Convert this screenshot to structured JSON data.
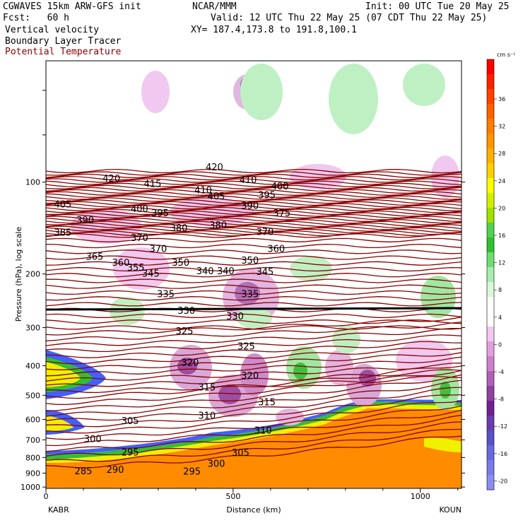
{
  "header": {
    "model": "CGWAVES 15km ARW-GFS init",
    "org": "NCAR/MMM",
    "init": "Init: 00 UTC Tue 20 May 25",
    "fcst": "Fcst:   60 h",
    "valid": "Valid: 12 UTC Thu 22 May 25 (07 CDT Thu 22 May 25)",
    "field1": "Vertical velocity",
    "field2": "Boundary Layer Tracer",
    "field3": "Potential Temperature",
    "xy": "XY= 187.4,173.8 to 191.8,100.1"
  },
  "colors": {
    "theta": "#8b0000",
    "field3_text": "#8b0000"
  },
  "chart_data": {
    "type": "heatmap",
    "xlabel": "Distance (km)",
    "ylabel": "Pressure (hPa), log scale",
    "x_ticks": [
      0,
      500,
      1000
    ],
    "xlim": [
      0,
      1110
    ],
    "y_ticks": [
      100,
      200,
      300,
      400,
      500,
      600,
      700,
      800,
      900,
      1000
    ],
    "ylim_hpa": [
      1010,
      40
    ],
    "y_scale": "log",
    "left_station": "KABR",
    "right_station": "KOUN",
    "colorbar": {
      "unit": "cm s⁻¹",
      "labels": [
        36,
        32,
        28,
        24,
        20,
        16,
        12,
        8,
        4,
        0,
        -4,
        -8,
        -12,
        -16,
        -20
      ],
      "colors": [
        "#ff0000",
        "#ff2000",
        "#ff4000",
        "#ff6000",
        "#ff7d00",
        "#ff9400",
        "#ffb000",
        "#ffd000",
        "#ffff00",
        "#d0f000",
        "#a0e000",
        "#50d050",
        "#30c030",
        "#70dd70",
        "#a8ecb0",
        "#d8f8d8",
        "#ffffff",
        "#ffffff",
        "#f0c8f0",
        "#e0a0e0",
        "#cc80cc",
        "#b060b8",
        "#9040a0",
        "#702090",
        "#6a3cb0",
        "#5a50c8",
        "#6868e0",
        "#7a7ae8",
        "#8c8cf0"
      ]
    },
    "theta_labels": [
      {
        "v": "420",
        "x": 175,
        "p": 97
      },
      {
        "v": "415",
        "x": 285,
        "p": 101
      },
      {
        "v": "410",
        "x": 420,
        "p": 106
      },
      {
        "v": "410",
        "x": 540,
        "p": 98
      },
      {
        "v": "400",
        "x": 625,
        "p": 103
      },
      {
        "v": "420",
        "x": 450,
        "p": 89
      },
      {
        "v": "405",
        "x": 45,
        "p": 118
      },
      {
        "v": "400",
        "x": 250,
        "p": 122
      },
      {
        "v": "395",
        "x": 305,
        "p": 126
      },
      {
        "v": "405",
        "x": 455,
        "p": 111
      },
      {
        "v": "390",
        "x": 545,
        "p": 119
      },
      {
        "v": "395",
        "x": 590,
        "p": 110
      },
      {
        "v": "375",
        "x": 630,
        "p": 126
      },
      {
        "v": "390",
        "x": 105,
        "p": 133
      },
      {
        "v": "380",
        "x": 355,
        "p": 141
      },
      {
        "v": "380",
        "x": 460,
        "p": 138
      },
      {
        "v": "370",
        "x": 585,
        "p": 145
      },
      {
        "v": "385",
        "x": 45,
        "p": 146
      },
      {
        "v": "360",
        "x": 615,
        "p": 165
      },
      {
        "v": "370",
        "x": 250,
        "p": 152
      },
      {
        "v": "370",
        "x": 300,
        "p": 165
      },
      {
        "v": "365",
        "x": 130,
        "p": 175
      },
      {
        "v": "360",
        "x": 200,
        "p": 183
      },
      {
        "v": "355",
        "x": 240,
        "p": 190
      },
      {
        "v": "350",
        "x": 360,
        "p": 183
      },
      {
        "v": "350",
        "x": 545,
        "p": 180
      },
      {
        "v": "345",
        "x": 585,
        "p": 196
      },
      {
        "v": "345",
        "x": 280,
        "p": 199
      },
      {
        "v": "340",
        "x": 425,
        "p": 195
      },
      {
        "v": "340",
        "x": 480,
        "p": 195
      },
      {
        "v": "335",
        "x": 320,
        "p": 232
      },
      {
        "v": "335",
        "x": 545,
        "p": 232
      },
      {
        "v": "330",
        "x": 375,
        "p": 263
      },
      {
        "v": "330",
        "x": 505,
        "p": 275
      },
      {
        "v": "325",
        "x": 370,
        "p": 307
      },
      {
        "v": "325",
        "x": 535,
        "p": 345
      },
      {
        "v": "320",
        "x": 385,
        "p": 390
      },
      {
        "v": "320",
        "x": 545,
        "p": 430
      },
      {
        "v": "315",
        "x": 430,
        "p": 470
      },
      {
        "v": "315",
        "x": 590,
        "p": 525
      },
      {
        "v": "310",
        "x": 430,
        "p": 582
      },
      {
        "v": "310",
        "x": 580,
        "p": 650
      },
      {
        "v": "305",
        "x": 225,
        "p": 605
      },
      {
        "v": "305",
        "x": 520,
        "p": 770
      },
      {
        "v": "300",
        "x": 125,
        "p": 693
      },
      {
        "v": "300",
        "x": 455,
        "p": 835
      },
      {
        "v": "295",
        "x": 225,
        "p": 768
      },
      {
        "v": "295",
        "x": 390,
        "p": 887
      },
      {
        "v": "290",
        "x": 185,
        "p": 875
      },
      {
        "v": "285",
        "x": 100,
        "p": 885
      }
    ]
  }
}
